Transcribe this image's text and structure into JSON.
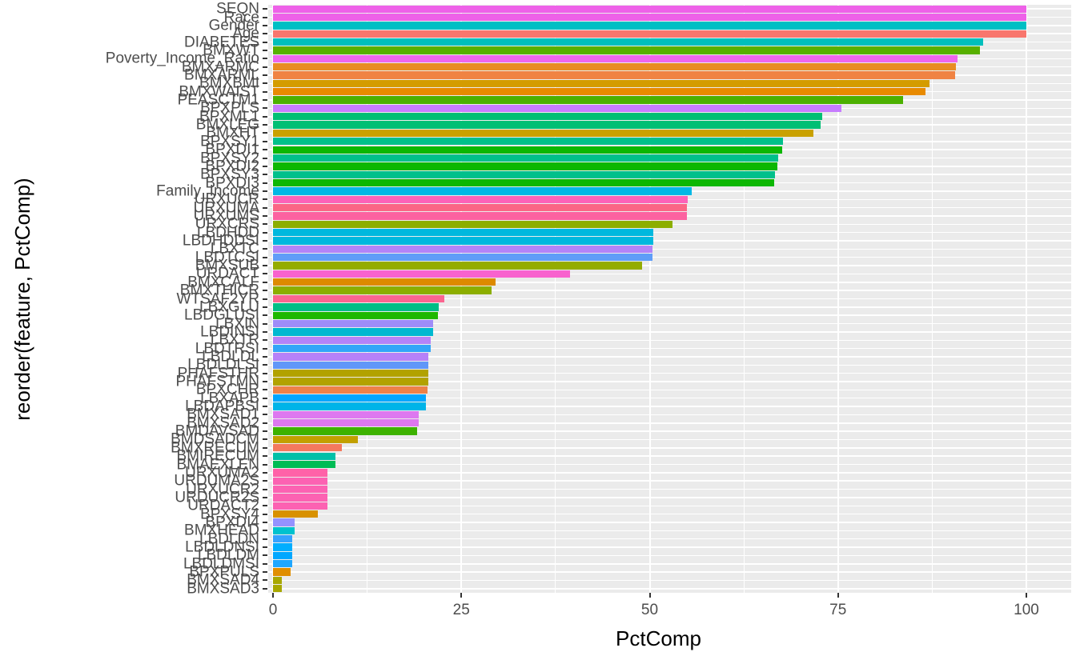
{
  "chart_data": {
    "type": "bar",
    "orientation": "horizontal",
    "xlabel": "PctComp",
    "ylabel": "reorder(feature, PctComp)",
    "xlim": [
      0,
      100
    ],
    "x_ticks": [
      0,
      25,
      50,
      75,
      100
    ],
    "grid": true,
    "legend": "none",
    "panel_bg": "#EBEBEB",
    "grid_color": "#FFFFFF",
    "tick_color": "#333333",
    "axis_text_color": "#4D4D4D",
    "categories": [
      "SEQN",
      "Race",
      "Gender",
      "Age",
      "DIABETES",
      "BMXWT",
      "Poverty_Income_Ratio",
      "BMXARMC",
      "BMXARML",
      "BMXBMI",
      "BMXWAIST",
      "PEASCTM1",
      "BPXPLS",
      "BPXML1",
      "BMXLEG",
      "BMXHT",
      "BPXSY1",
      "BPXDI1",
      "BPXSY2",
      "BPXDI2",
      "BPXSY3",
      "BPXDI3",
      "Family_Income",
      "URXUCR",
      "URXUMA",
      "URXUMS",
      "URXCRS",
      "LBDHDD",
      "LBDHDDSI",
      "LBXTC",
      "LBDTCSI",
      "BMXSUB",
      "URDACT",
      "BMXCALF",
      "BMXTHICR",
      "WTSAF2YR",
      "LBXGLU",
      "LBDGLUSI",
      "LBXIN",
      "LBDINSI",
      "LBXTR",
      "LBDTRSI",
      "LBDLDL",
      "LBDLDLSI",
      "PHAFSTHR",
      "PHAFSTMN",
      "BPXCHR",
      "LBXAPB",
      "LBDAPBSI",
      "BMXSAD1",
      "BMXSAD2",
      "BMDAVSAD",
      "BMDSADCM",
      "BMXRECUM",
      "BMIRECUM",
      "BMAEXLEN",
      "URXUMA2",
      "URDUMA2S",
      "URXUCR2",
      "URDUCR2S",
      "URDACT2",
      "BPXSY4",
      "BPXDI4",
      "BMXHEAD",
      "LBDLDN",
      "LBDLDNSI",
      "LBDLDM",
      "LBDLDMSI",
      "BPXPULS",
      "BMXSAD4",
      "BMXSAD3"
    ],
    "values": [
      100,
      100,
      100,
      100,
      94.3,
      93.8,
      90.9,
      90.7,
      90.5,
      87.1,
      86.6,
      83.6,
      75.4,
      72.9,
      72.7,
      71.7,
      67.7,
      67.6,
      67.1,
      67.0,
      66.6,
      66.5,
      55.6,
      55.0,
      54.9,
      54.9,
      53.0,
      50.5,
      50.5,
      50.4,
      50.4,
      49.0,
      39.4,
      29.5,
      29.0,
      22.7,
      22.0,
      21.9,
      21.3,
      21.3,
      20.9,
      20.9,
      20.6,
      20.6,
      20.6,
      20.6,
      20.5,
      20.3,
      20.3,
      19.3,
      19.3,
      19.1,
      11.3,
      9.1,
      8.3,
      8.3,
      7.2,
      7.2,
      7.2,
      7.2,
      7.2,
      6.0,
      2.9,
      2.9,
      2.5,
      2.5,
      2.5,
      2.5,
      2.3,
      1.2,
      1.2
    ],
    "colors": [
      "#EE61E8",
      "#EE61E8",
      "#00BFC4",
      "#F8766D",
      "#00BFBC",
      "#57B000",
      "#EE66EE",
      "#E88C23",
      "#F08343",
      "#D49C00",
      "#E88A00",
      "#4CB000",
      "#C77CFF",
      "#00BF74",
      "#00BF74",
      "#C9A100",
      "#00C08B",
      "#0CB702",
      "#00C08B",
      "#0CB702",
      "#00C08B",
      "#0CB702",
      "#00B8E5",
      "#FC62B8",
      "#FB6585",
      "#FC62A0",
      "#8CAE00",
      "#00B8DE",
      "#00B8DE",
      "#B284F8",
      "#5F9DF8",
      "#94AC00",
      "#F862CE",
      "#DD8A00",
      "#8CAE00",
      "#FB6590",
      "#00BE86",
      "#1EB800",
      "#9E8CF8",
      "#00B8D0",
      "#B383F8",
      "#32A5F8",
      "#B681F8",
      "#6097F8",
      "#B2A200",
      "#B2A200",
      "#ED8148",
      "#00A6FF",
      "#00B4E8",
      "#DD78F0",
      "#DD78F0",
      "#3DB200",
      "#C2A000",
      "#F4795E",
      "#00C0A8",
      "#00BC55",
      "#FF62A8",
      "#FC62B2",
      "#FC62B2",
      "#FC62B2",
      "#FC62B2",
      "#D89100",
      "#9492FF",
      "#00C2CE",
      "#35A2FF",
      "#00AEFF",
      "#00A7FF",
      "#1FA7FF",
      "#E08E00",
      "#A8A800",
      "#A8A800"
    ]
  }
}
